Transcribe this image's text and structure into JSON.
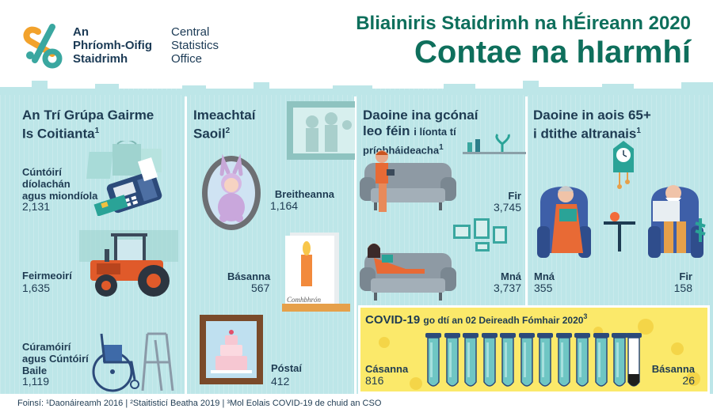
{
  "header": {
    "logo_ga": [
      "An",
      "Phríomh-Oifig",
      "Staidrimh"
    ],
    "logo_en": [
      "Central",
      "Statistics",
      "Office"
    ],
    "title_small": "Bliainiris Staidrimh na hÉireann 2020",
    "title_big": "Contae na hIarmhí"
  },
  "colors": {
    "teal_dark": "#0e6f5c",
    "navy": "#1e3b52",
    "band": "#bde6e8",
    "covid_bg": "#fbe96a"
  },
  "occupations": {
    "title_line1": "An Trí Grúpa Gairme",
    "title_line2": "Is Coitianta",
    "title_sup": "1",
    "items": [
      {
        "label": [
          "Cúntóirí",
          "díolachán",
          "agus miondíola"
        ],
        "value": "2,131",
        "icon": "card-reader-icon"
      },
      {
        "label": [
          "Feirmeoirí"
        ],
        "value": "1,635",
        "icon": "tractor-icon"
      },
      {
        "label": [
          "Cúramóirí",
          "agus Cúntóirí",
          "Baile"
        ],
        "value": "1,119",
        "icon": "wheelchair-icon"
      }
    ]
  },
  "life_events": {
    "title_line1": "Imeachtaí",
    "title_line2": "Saoil",
    "title_sup": "2",
    "items": [
      {
        "label": "Breitheanna",
        "value": "1,164",
        "icon": "baby-portrait-icon"
      },
      {
        "label": "Básanna",
        "value": "567",
        "icon": "candle-card-icon"
      },
      {
        "label": "Póstaí",
        "value": "412",
        "icon": "wedding-cake-icon"
      }
    ],
    "card_text": "Comhbhrón"
  },
  "living_alone": {
    "title_line1": "Daoine ina gcónaí",
    "title_line2": "leo féin",
    "title_rest": "i líonta tí",
    "title_line3": "príobháideacha",
    "title_sup": "1",
    "items": [
      {
        "label": "Fir",
        "value": "3,745",
        "icon": "man-sofa-icon"
      },
      {
        "label": "Mná",
        "value": "3,737",
        "icon": "woman-sofa-icon"
      }
    ]
  },
  "nursing": {
    "title_line1": "Daoine in aois 65+",
    "title_line2": "i dtithe altranais",
    "title_sup": "1",
    "items": [
      {
        "label": "Mná",
        "value": "355"
      },
      {
        "label": "Fir",
        "value": "158"
      }
    ]
  },
  "covid": {
    "title": "COVID-19",
    "subtitle": "go dtí an 02 Deireadh Fómhair 2020",
    "title_sup": "3",
    "cases_label": "Cásanna",
    "cases_value": "816",
    "deaths_label": "Básanna",
    "deaths_value": "26"
  },
  "footer": "Foinsí: ¹Daonáireamh 2016 | ²Staitisticí Beatha 2019 | ³Mol Eolais COVID-19 de chuid an CSO"
}
